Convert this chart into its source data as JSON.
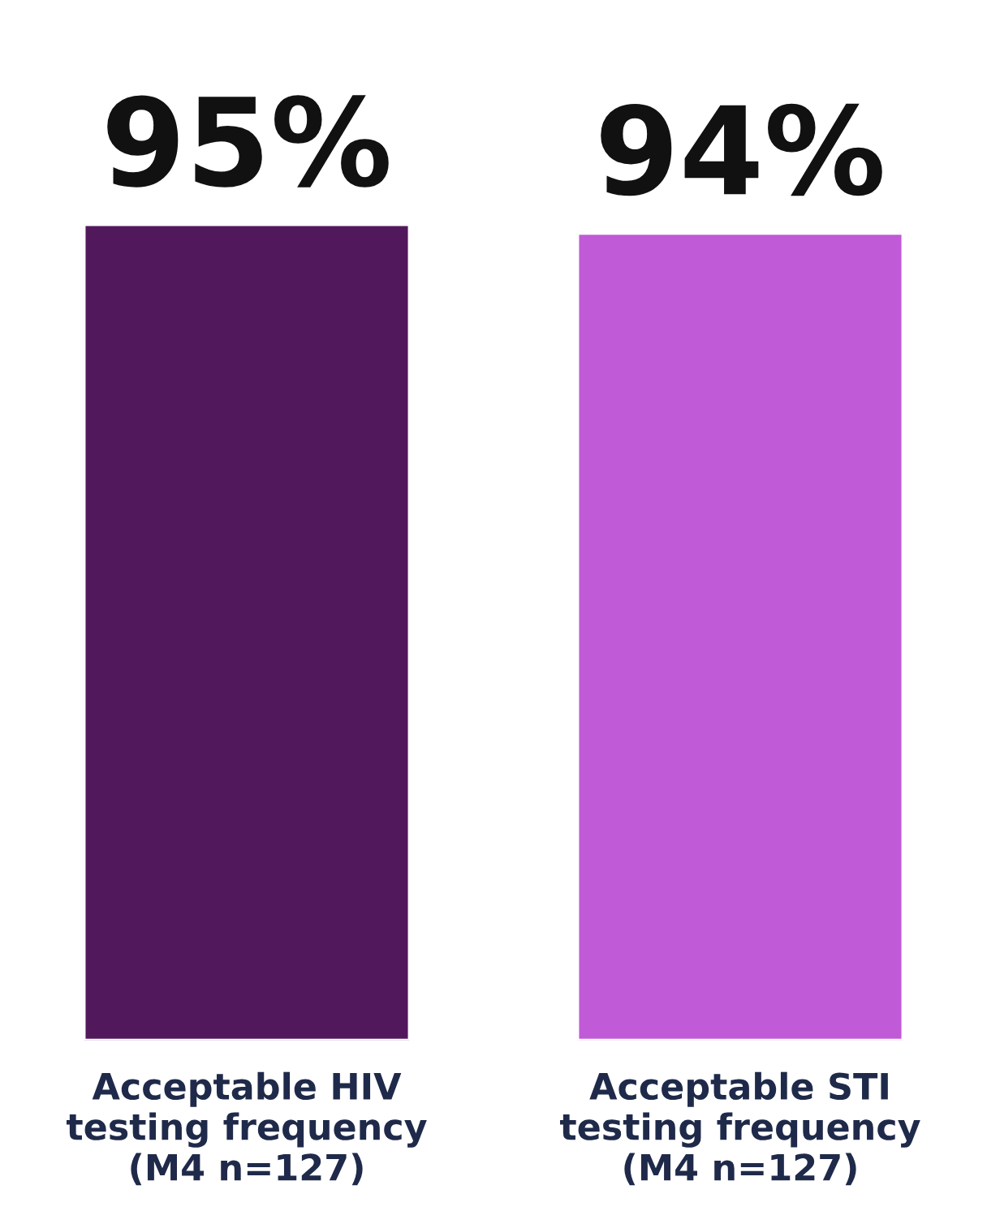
{
  "chart_data": {
    "type": "bar",
    "categories": [
      "Acceptable HIV\ntesting frequency\n(M4 n=127)",
      "Acceptable STI\ntesting frequency\n(M4 n=127)"
    ],
    "values": [
      95,
      94
    ],
    "colors": [
      "#52185c",
      "#c05ad6"
    ],
    "value_labels": [
      "95%",
      "94%"
    ]
  }
}
